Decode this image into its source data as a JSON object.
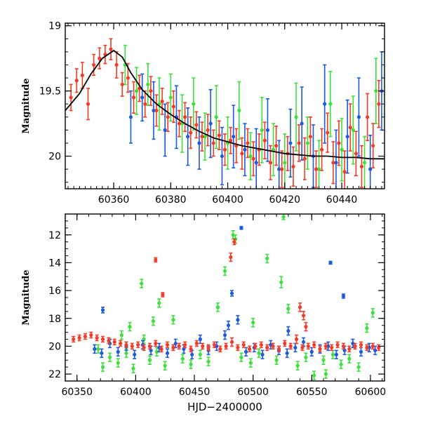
{
  "colors": {
    "red": "#f03c28",
    "green": "#3de03d",
    "blue": "#1b5be0",
    "model": "#000000"
  },
  "chart_data": [
    {
      "type": "scatter",
      "panel": "top",
      "ylabel": "Magnitude",
      "xlabel": "",
      "xlim": [
        60343,
        60455
      ],
      "ylim": [
        20.25,
        18.98
      ],
      "y_inverted": true,
      "xticks": [
        60360,
        60380,
        60400,
        60420,
        60440
      ],
      "yticks": [
        19,
        19.5,
        20
      ],
      "ytick_labels": [
        "19",
        "19.5",
        "20"
      ],
      "grid": false,
      "legend": "none",
      "model_curve": {
        "color": "model",
        "x": [
          60343,
          60348,
          60352,
          60356,
          60360,
          60363,
          60366,
          60370,
          60375,
          60380,
          60385,
          60390,
          60395,
          60400,
          60405,
          60410,
          60415,
          60420,
          60425,
          60430,
          60435,
          60440,
          60445,
          60450,
          60455
        ],
        "y": [
          19.65,
          19.52,
          19.37,
          19.25,
          19.19,
          19.24,
          19.36,
          19.49,
          19.6,
          19.68,
          19.75,
          19.81,
          19.86,
          19.89,
          19.92,
          19.94,
          19.96,
          19.98,
          19.99,
          20.0,
          20.0,
          20.01,
          20.01,
          20.02,
          20.02
        ]
      },
      "series": [
        {
          "color": "red",
          "x": [
            60345,
            60347,
            60349,
            60351,
            60353,
            60355,
            60357,
            60359,
            60361,
            60363,
            60365,
            60367,
            60369,
            60371,
            60373,
            60375,
            60377,
            60379,
            60381,
            60383,
            60385,
            60387,
            60389,
            60391,
            60393,
            60395,
            60397,
            60399,
            60401,
            60403,
            60405,
            60407,
            60409,
            60411,
            60413,
            60415,
            60417,
            60419,
            60421,
            60423,
            60425,
            60427,
            60429,
            60431,
            60433,
            60435,
            60437,
            60439,
            60441,
            60443,
            60445,
            60447,
            60449,
            60451,
            60453
          ],
          "y": [
            19.55,
            19.42,
            19.38,
            19.6,
            19.3,
            19.25,
            19.22,
            19.18,
            19.3,
            19.45,
            19.4,
            19.55,
            19.48,
            19.6,
            19.5,
            19.65,
            19.58,
            19.7,
            19.62,
            19.75,
            19.7,
            19.82,
            19.76,
            19.85,
            19.8,
            19.9,
            19.84,
            19.95,
            19.88,
            19.92,
            19.98,
            19.9,
            20.02,
            19.95,
            19.88,
            20.05,
            19.92,
            20.1,
            19.98,
            20.08,
            19.9,
            20.02,
            19.85,
            20.1,
            19.95,
            19.82,
            20.05,
            19.9,
            20.12,
            19.78,
            19.98,
            20.08,
            19.7,
            19.92,
            19.6
          ],
          "yerr": [
            0.1,
            0.09,
            0.1,
            0.12,
            0.08,
            0.08,
            0.07,
            0.08,
            0.1,
            0.09,
            0.11,
            0.12,
            0.1,
            0.1,
            0.11,
            0.12,
            0.1,
            0.11,
            0.12,
            0.1,
            0.11,
            0.12,
            0.1,
            0.11,
            0.12,
            0.1,
            0.11,
            0.12,
            0.1,
            0.13,
            0.12,
            0.11,
            0.13,
            0.12,
            0.14,
            0.13,
            0.15,
            0.14,
            0.13,
            0.15,
            0.14,
            0.16,
            0.15,
            0.14,
            0.16,
            0.15,
            0.16,
            0.17,
            0.16,
            0.18,
            0.17,
            0.16,
            0.18,
            0.17,
            0.18
          ]
        },
        {
          "color": "green",
          "x": [
            60364,
            60368,
            60372,
            60376,
            60380,
            60384,
            60388,
            60392,
            60396,
            60400,
            60404,
            60408,
            60412,
            60416,
            60420,
            60424,
            60428,
            60432,
            60436,
            60440,
            60444,
            60448,
            60452
          ],
          "y": [
            19.3,
            19.5,
            19.45,
            19.6,
            19.55,
            19.75,
            19.6,
            19.85,
            19.7,
            19.9,
            19.65,
            20.0,
            19.8,
            19.95,
            20.05,
            19.7,
            19.9,
            20.1,
            19.6,
            19.95,
            19.8,
            20.05,
            19.5
          ],
          "yerr": [
            0.15,
            0.18,
            0.16,
            0.2,
            0.18,
            0.22,
            0.2,
            0.18,
            0.24,
            0.2,
            0.22,
            0.18,
            0.25,
            0.2,
            0.22,
            0.26,
            0.2,
            0.22,
            0.25,
            0.24,
            0.26,
            0.2,
            0.25
          ]
        },
        {
          "color": "blue",
          "x": [
            60366,
            60370,
            60374,
            60378,
            60382,
            60386,
            60390,
            60394,
            60398,
            60402,
            60406,
            60410,
            60414,
            60418,
            60422,
            60426,
            60430,
            60434,
            60438,
            60442,
            60446,
            60450,
            60454
          ],
          "y": [
            19.7,
            19.55,
            19.65,
            19.8,
            19.7,
            19.85,
            19.9,
            19.75,
            20.0,
            19.85,
            19.95,
            20.05,
            19.8,
            20.1,
            19.9,
            19.75,
            20.0,
            19.6,
            20.05,
            19.85,
            19.7,
            20.1,
            19.5
          ],
          "yerr": [
            0.2,
            0.18,
            0.22,
            0.2,
            0.24,
            0.22,
            0.2,
            0.26,
            0.22,
            0.24,
            0.2,
            0.26,
            0.24,
            0.22,
            0.26,
            0.28,
            0.24,
            0.3,
            0.25,
            0.28,
            0.3,
            0.26,
            0.3
          ]
        }
      ]
    },
    {
      "type": "scatter",
      "panel": "bottom",
      "ylabel": "Magnitude",
      "xlabel": "HJD−2400000",
      "xlim": [
        60340,
        60612
      ],
      "ylim": [
        22.5,
        10.5
      ],
      "y_inverted": true,
      "xticks": [
        60350,
        60400,
        60450,
        60500,
        60550,
        60600
      ],
      "yticks": [
        12,
        14,
        16,
        18,
        20,
        22
      ],
      "ytick_labels": [
        "12",
        "14",
        "16",
        "18",
        "20",
        "22"
      ],
      "grid": false,
      "legend": "none",
      "series": [
        {
          "color": "red",
          "x": [
            60347,
            60352,
            60357,
            60362,
            60367,
            60372,
            60377,
            60382,
            60387,
            60392,
            60397,
            60402,
            60407,
            60412,
            60417,
            60422,
            60427,
            60432,
            60437,
            60442,
            60447,
            60452,
            60457,
            60462,
            60467,
            60472,
            60477,
            60482,
            60487,
            60492,
            60497,
            60502,
            60507,
            60512,
            60517,
            60522,
            60527,
            60532,
            60537,
            60542,
            60547,
            60552,
            60557,
            60562,
            60567,
            60572,
            60577,
            60582,
            60587,
            60592,
            60597,
            60602,
            60607,
            60417,
            60423,
            60481,
            60484,
            60540,
            60543,
            60545
          ],
          "y": [
            19.5,
            19.4,
            19.3,
            19.2,
            19.4,
            19.5,
            19.6,
            19.7,
            19.8,
            19.9,
            20.0,
            19.9,
            20.1,
            20.0,
            19.8,
            20.2,
            19.9,
            20.1,
            20.0,
            19.9,
            20.2,
            19.8,
            20.0,
            20.1,
            19.9,
            20.2,
            20.0,
            19.7,
            20.1,
            19.9,
            20.2,
            20.0,
            19.9,
            20.1,
            20.0,
            20.2,
            19.8,
            20.0,
            19.5,
            20.1,
            20.0,
            19.9,
            20.2,
            20.0,
            20.1,
            19.9,
            20.0,
            20.2,
            20.0,
            19.9,
            20.1,
            20.0,
            20.1,
            13.8,
            16.3,
            13.6,
            12.5,
            17.2,
            17.8,
            18.6
          ],
          "yerr": [
            0.2,
            0.2,
            0.2,
            0.2,
            0.2,
            0.2,
            0.2,
            0.2,
            0.2,
            0.2,
            0.2,
            0.2,
            0.2,
            0.2,
            0.2,
            0.2,
            0.2,
            0.2,
            0.2,
            0.2,
            0.2,
            0.2,
            0.2,
            0.2,
            0.2,
            0.2,
            0.2,
            0.3,
            0.2,
            0.2,
            0.2,
            0.2,
            0.2,
            0.2,
            0.2,
            0.2,
            0.2,
            0.2,
            0.3,
            0.2,
            0.2,
            0.2,
            0.2,
            0.2,
            0.2,
            0.2,
            0.2,
            0.2,
            0.2,
            0.2,
            0.2,
            0.2,
            0.2,
            0.15,
            0.15,
            0.3,
            0.2,
            0.3,
            0.3,
            0.3
          ]
        },
        {
          "color": "green",
          "x": [
            60368,
            60372,
            60378,
            60385,
            60392,
            60398,
            60405,
            60412,
            60418,
            60425,
            60432,
            60440,
            60447,
            60455,
            60462,
            60470,
            60476,
            60483,
            60485,
            60490,
            60498,
            60505,
            60512,
            60520,
            60524,
            60526,
            60530,
            60538,
            60545,
            60552,
            60560,
            60568,
            60575,
            60582,
            60590,
            60597,
            60602,
            60407,
            60420,
            60388,
            60395,
            60415,
            60500,
            60562
          ],
          "y": [
            20.2,
            21.5,
            20.8,
            21.2,
            20.5,
            21.6,
            15.5,
            21.0,
            20.4,
            21.4,
            18.1,
            20.9,
            21.3,
            20.6,
            21.1,
            17.2,
            14.6,
            12.0,
            12.3,
            20.8,
            21.2,
            20.5,
            13.7,
            21.0,
            15.4,
            10.7,
            17.3,
            21.4,
            20.8,
            22.1,
            21.0,
            20.6,
            21.3,
            20.9,
            21.5,
            18.7,
            17.6,
            19.5,
            16.9,
            19.2,
            18.6,
            18.2,
            18.3,
            22.0
          ],
          "yerr": [
            0.3,
            0.3,
            0.3,
            0.3,
            0.3,
            0.3,
            0.3,
            0.3,
            0.3,
            0.3,
            0.3,
            0.3,
            0.3,
            0.3,
            0.3,
            0.3,
            0.3,
            0.3,
            0.3,
            0.3,
            0.3,
            0.3,
            0.3,
            0.3,
            0.4,
            0.2,
            0.3,
            0.3,
            0.3,
            0.3,
            0.3,
            0.3,
            0.3,
            0.3,
            0.3,
            0.3,
            0.3,
            0.3,
            0.3,
            0.3,
            0.3,
            0.3,
            0.3,
            0.3
          ]
        },
        {
          "color": "blue",
          "x": [
            60365,
            60371,
            60378,
            60385,
            60392,
            60399,
            60406,
            60413,
            60420,
            60427,
            60434,
            60441,
            60448,
            60455,
            60462,
            60469,
            60476,
            60482,
            60487,
            60490,
            60494,
            60501,
            60508,
            60515,
            60522,
            60529,
            60536,
            60543,
            60550,
            60557,
            60564,
            60571,
            60578,
            60585,
            60592,
            60599,
            60604,
            60372,
            60479,
            60566,
            60577,
            60530
          ],
          "y": [
            20.2,
            20.5,
            19.8,
            20.4,
            20.0,
            20.6,
            19.9,
            20.3,
            20.1,
            20.5,
            19.8,
            20.2,
            20.6,
            19.5,
            20.3,
            20.0,
            19.2,
            16.2,
            18.1,
            11.5,
            20.4,
            20.1,
            20.6,
            19.9,
            20.3,
            20.5,
            20.1,
            19.7,
            20.4,
            20.2,
            20.0,
            20.6,
            20.3,
            19.8,
            20.4,
            20.1,
            20.3,
            17.4,
            18.5,
            14.0,
            16.4,
            18.9
          ],
          "yerr": [
            0.3,
            0.3,
            0.3,
            0.3,
            0.3,
            0.3,
            0.3,
            0.3,
            0.3,
            0.3,
            0.3,
            0.3,
            0.3,
            0.3,
            0.3,
            0.3,
            0.3,
            0.2,
            0.3,
            0.1,
            0.3,
            0.3,
            0.3,
            0.3,
            0.3,
            0.3,
            0.3,
            0.3,
            0.3,
            0.3,
            0.3,
            0.3,
            0.3,
            0.3,
            0.3,
            0.3,
            0.3,
            0.2,
            0.3,
            0.1,
            0.15,
            0.3
          ]
        }
      ]
    }
  ]
}
